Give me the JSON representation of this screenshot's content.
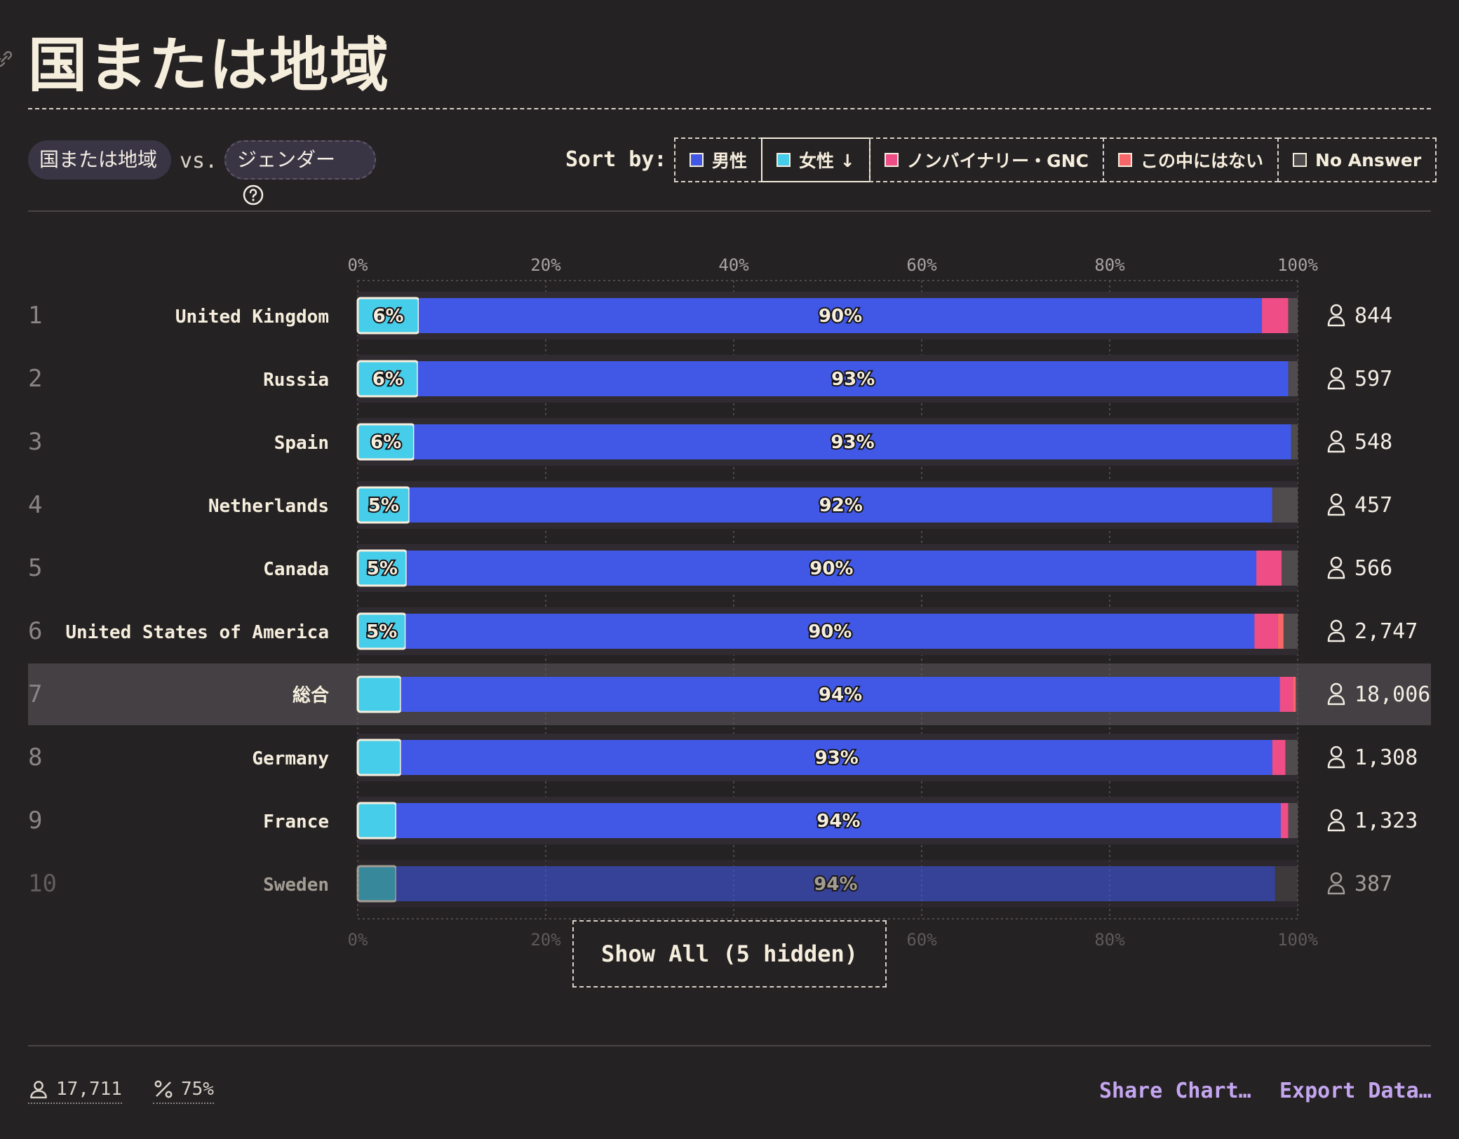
{
  "title": "国または地域",
  "controls": {
    "dimension_a": "国または地域",
    "vs": "vs.",
    "dimension_b": "ジェンダー",
    "sort_by": "Sort by:",
    "sort_options": [
      "男性",
      "女性 ↓",
      "ノンバイナリー・GNC",
      "この中にはない",
      "No Answer"
    ],
    "show_all": "Show All (5 hidden)"
  },
  "colors": {
    "male": "#4158e6",
    "female": "#46cdea",
    "nonbinary": "#ee4d86",
    "none_of_these": "#f76769",
    "no_answer": "#504b4d",
    "background": "#252224"
  },
  "chart_data": {
    "type": "bar",
    "orientation": "horizontal",
    "stacked": true,
    "xlim": [
      0,
      100
    ],
    "ticks": [
      "0%",
      "20%",
      "40%",
      "60%",
      "80%",
      "100%"
    ],
    "categories": [
      "United Kingdom",
      "Russia",
      "Spain",
      "Netherlands",
      "Canada",
      "United States of America",
      "総合",
      "Germany",
      "France",
      "Sweden"
    ],
    "ranks": [
      "1",
      "2",
      "3",
      "4",
      "5",
      "6",
      "7",
      "8",
      "9",
      "10"
    ],
    "counts": [
      "844",
      "597",
      "548",
      "457",
      "566",
      "2,747",
      "18,006",
      "1,308",
      "1,323",
      "387"
    ],
    "highlight_category": "総合",
    "series": [
      {
        "name": "女性",
        "values": [
          6.5,
          6.4,
          6.0,
          5.5,
          5.2,
          5.1,
          4.6,
          4.6,
          4.1,
          4.1
        ],
        "labels": [
          "6%",
          "6%",
          "6%",
          "5%",
          "5%",
          "5%",
          "",
          "",
          "",
          ""
        ]
      },
      {
        "name": "男性",
        "values": [
          89.7,
          92.6,
          93.3,
          91.8,
          90.4,
          90.3,
          93.5,
          92.7,
          94.1,
          93.5
        ],
        "labels": [
          "90%",
          "93%",
          "93%",
          "92%",
          "90%",
          "90%",
          "94%",
          "93%",
          "94%",
          "94%"
        ]
      },
      {
        "name": "ノンバイナリー・GNC",
        "values": [
          2.8,
          0.0,
          0.0,
          0.0,
          2.7,
          2.5,
          1.4,
          1.4,
          0.8,
          0.0
        ],
        "labels": [
          "",
          "",
          "",
          "",
          "",
          "",
          "",
          "",
          "",
          ""
        ]
      },
      {
        "name": "この中にはない",
        "values": [
          0.0,
          0.0,
          0.0,
          0.0,
          0.0,
          0.6,
          0.3,
          0.0,
          0.0,
          0.0
        ],
        "labels": [
          "",
          "",
          "",
          "",
          "",
          "",
          "",
          "",
          "",
          ""
        ]
      },
      {
        "name": "No Answer",
        "values": [
          1.0,
          1.0,
          0.7,
          2.7,
          1.7,
          1.5,
          0.2,
          1.3,
          1.0,
          2.4
        ],
        "labels": [
          "",
          "",
          "",
          "",
          "",
          "",
          "",
          "",
          "",
          ""
        ]
      }
    ]
  },
  "footer": {
    "respondents": "17,711",
    "percent": "75%",
    "share": "Share Chart…",
    "export": "Export Data…"
  }
}
